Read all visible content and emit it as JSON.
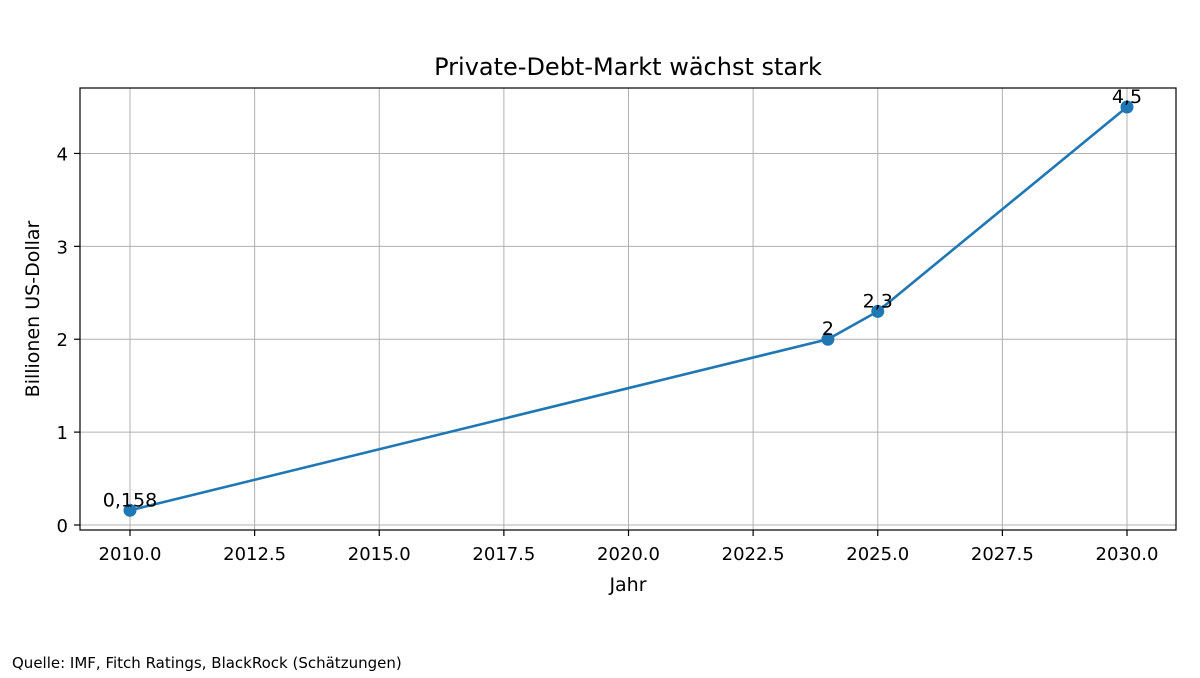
{
  "chart_data": {
    "type": "line",
    "title": "Private-Debt-Markt wächst stark",
    "xlabel": "Jahr",
    "ylabel": "Billionen US-Dollar",
    "x": [
      2010,
      2024,
      2025,
      2030
    ],
    "series": [
      {
        "values": [
          0.158,
          2,
          2.3,
          4.5
        ]
      }
    ],
    "data_labels": [
      "0,158",
      "2",
      "2,3",
      "4,5"
    ],
    "xlim": [
      2010,
      2030
    ],
    "ylim": [
      0,
      4.5
    ],
    "x_ticks": [
      2010,
      2012.5,
      2015,
      2017.5,
      2020,
      2022.5,
      2025,
      2027.5,
      2030
    ],
    "x_tick_labels": [
      "2010.0",
      "2012.5",
      "2015.0",
      "2017.5",
      "2020.0",
      "2022.5",
      "2025.0",
      "2027.5",
      "2030.0"
    ],
    "y_ticks": [
      0,
      1,
      2,
      3,
      4
    ],
    "y_tick_labels": [
      "0",
      "1",
      "2",
      "3",
      "4"
    ],
    "grid": true,
    "legend": "none",
    "line_color": "#1f77b4"
  },
  "source_note": "Quelle: IMF, Fitch Ratings, BlackRock (Schätzungen)"
}
